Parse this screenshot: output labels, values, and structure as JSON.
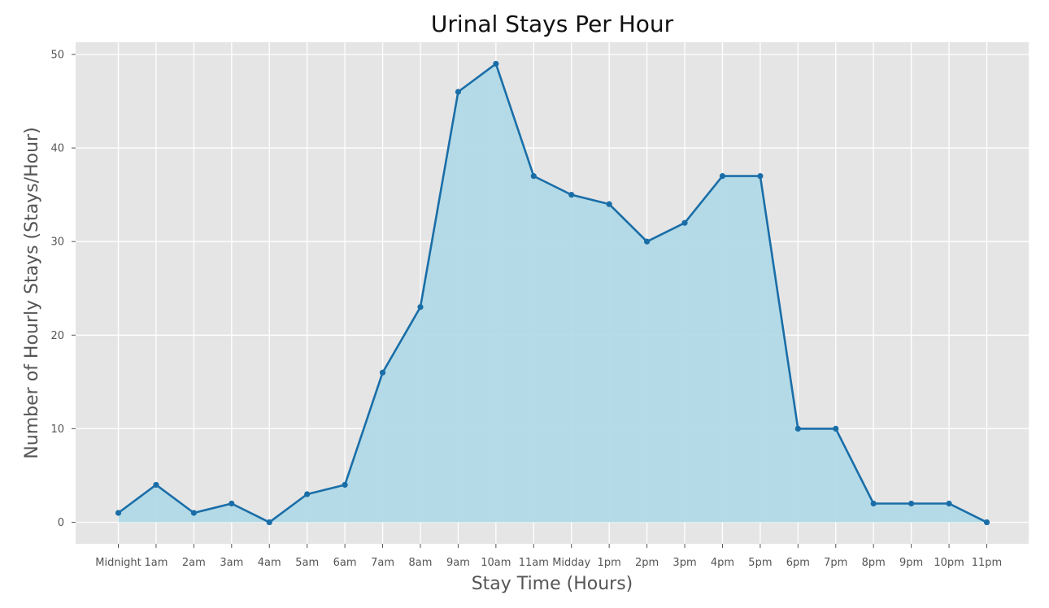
{
  "chart_data": {
    "type": "area",
    "title": "Urinal Stays Per Hour",
    "xlabel": "Stay Time (Hours)",
    "ylabel": "Number of Hourly Stays (Stays/Hour)",
    "categories": [
      "Midnight",
      "1am",
      "2am",
      "3am",
      "4am",
      "5am",
      "6am",
      "7am",
      "8am",
      "9am",
      "10am",
      "11am",
      "Midday",
      "1pm",
      "2pm",
      "3pm",
      "4pm",
      "5pm",
      "6pm",
      "7pm",
      "8pm",
      "9pm",
      "10pm",
      "11pm"
    ],
    "values": [
      1,
      4,
      1,
      2,
      0,
      3,
      4,
      16,
      23,
      46,
      49,
      37,
      35,
      34,
      30,
      32,
      37,
      37,
      10,
      10,
      2,
      2,
      2,
      0
    ],
    "ylim": [
      -2.3,
      51.3
    ],
    "yticks": [
      0,
      10,
      20,
      30,
      40,
      50
    ],
    "grid": true,
    "colors": {
      "background": "#e5e5e5",
      "grid": "#ffffff",
      "line": "#1a6ea8",
      "fill": "#add8e6"
    }
  }
}
